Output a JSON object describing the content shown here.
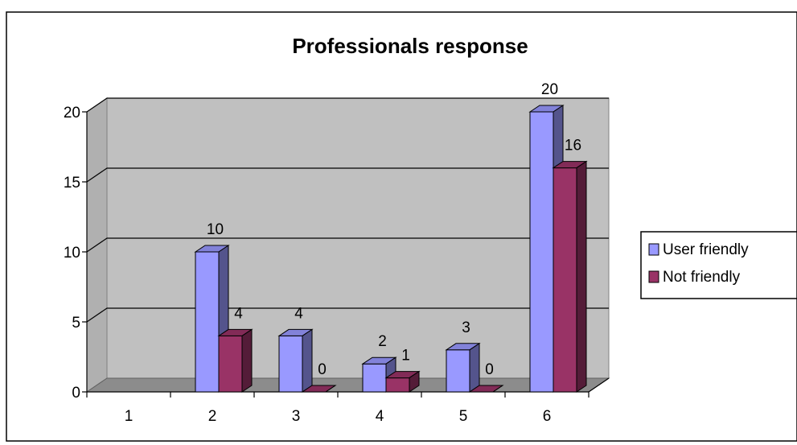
{
  "chart_data": {
    "type": "bar",
    "title": "Professionals response",
    "xlabel": "",
    "ylabel": "",
    "categories": [
      "1",
      "2",
      "3",
      "4",
      "5",
      "6"
    ],
    "series": [
      {
        "name": "User friendly",
        "values": [
          null,
          10,
          4,
          2,
          3,
          20
        ],
        "color": "#9999FF"
      },
      {
        "name": "Not friendly",
        "values": [
          null,
          4,
          0,
          1,
          0,
          16
        ],
        "color": "#993366"
      }
    ],
    "y_ticks": [
      "0",
      "5",
      "10",
      "15",
      "20"
    ],
    "ylim": [
      0,
      20
    ],
    "grid": true,
    "legend_position": "right",
    "style_3d": true,
    "wall_color": "#C0C0C0"
  }
}
